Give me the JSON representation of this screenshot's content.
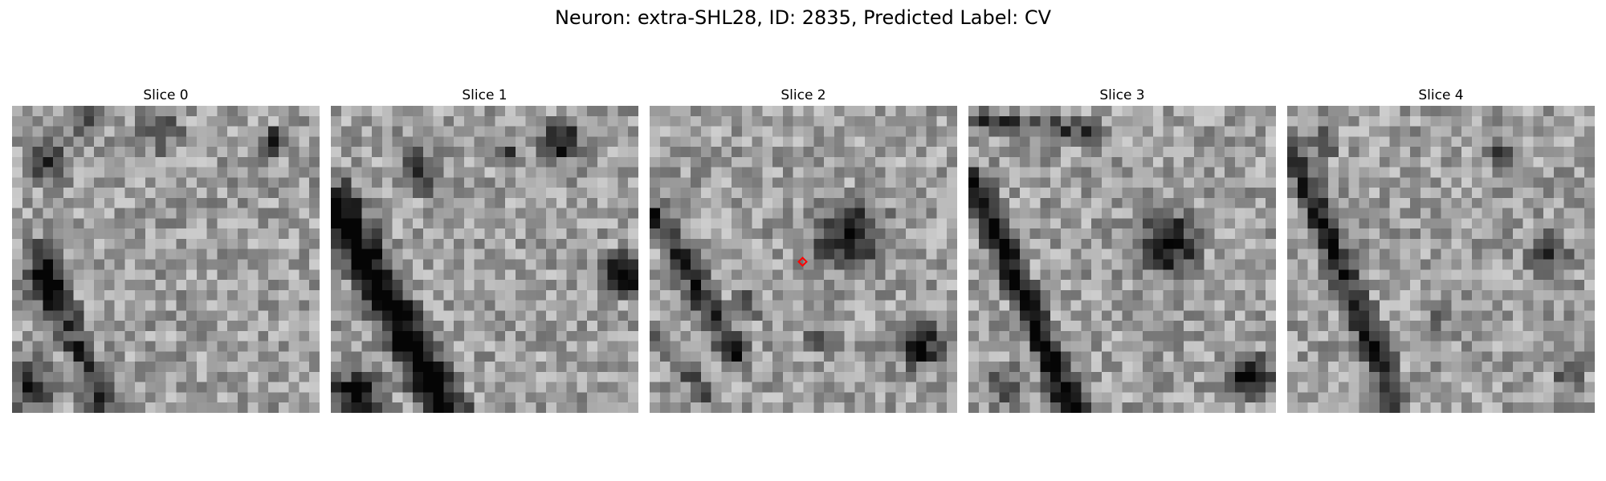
{
  "figure": {
    "title": "Neuron: extra-SHL28, ID: 2835, Predicted Label: CV"
  },
  "panels": [
    {
      "title": "Slice 0"
    },
    {
      "title": "Slice 1"
    },
    {
      "title": "Slice 2"
    },
    {
      "title": "Slice 3"
    },
    {
      "title": "Slice 4"
    }
  ],
  "colors": {
    "marker": "#ff0000",
    "colormap": "grayscale"
  }
}
